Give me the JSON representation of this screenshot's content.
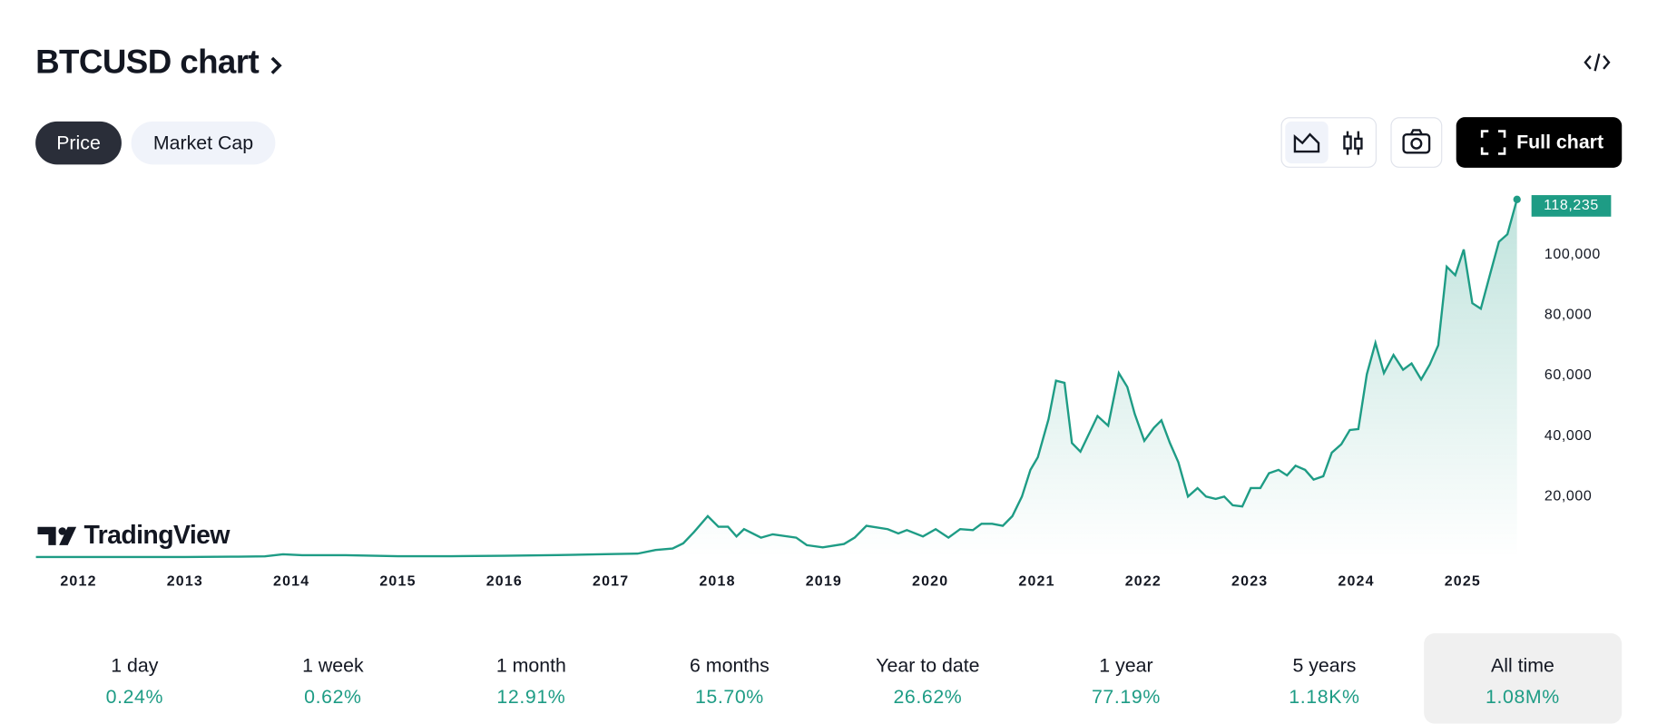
{
  "header": {
    "title": "BTCUSD chart",
    "tabs": [
      "Price",
      "Market Cap"
    ],
    "full_chart": "Full chart"
  },
  "chart_data": {
    "type": "line",
    "color": "#1e9c85",
    "watermark": "TradingView",
    "x": [
      2011.6,
      2012.0,
      2012.5,
      2013.0,
      2013.5,
      2013.75,
      2013.92,
      2014.1,
      2014.5,
      2015.0,
      2015.5,
      2016.0,
      2016.5,
      2017.0,
      2017.25,
      2017.42,
      2017.58,
      2017.68,
      2017.78,
      2017.91,
      2018.01,
      2018.1,
      2018.18,
      2018.25,
      2018.41,
      2018.52,
      2018.74,
      2018.84,
      2018.99,
      2019.19,
      2019.29,
      2019.4,
      2019.6,
      2019.7,
      2019.78,
      2019.93,
      2020.05,
      2020.17,
      2020.28,
      2020.4,
      2020.48,
      2020.58,
      2020.68,
      2020.77,
      2020.86,
      2020.94,
      2021.01,
      2021.11,
      2021.18,
      2021.26,
      2021.33,
      2021.41,
      2021.57,
      2021.67,
      2021.77,
      2021.85,
      2021.92,
      2022.01,
      2022.1,
      2022.17,
      2022.25,
      2022.33,
      2022.42,
      2022.51,
      2022.59,
      2022.68,
      2022.76,
      2022.84,
      2022.93,
      2023.01,
      2023.1,
      2023.18,
      2023.27,
      2023.35,
      2023.43,
      2023.52,
      2023.6,
      2023.69,
      2023.77,
      2023.86,
      2023.94,
      2024.02,
      2024.1,
      2024.18,
      2024.26,
      2024.35,
      2024.44,
      2024.52,
      2024.61,
      2024.69,
      2024.77,
      2024.85,
      2024.93,
      2025.01,
      2025.09,
      2025.17,
      2025.26,
      2025.34,
      2025.42,
      2025.51
    ],
    "values": [
      5,
      5,
      7,
      13,
      100,
      200,
      900,
      600,
      600,
      250,
      250,
      400,
      650,
      950,
      1100,
      2300,
      2800,
      4500,
      8200,
      13500,
      10000,
      10000,
      6800,
      9200,
      6400,
      7500,
      6400,
      3900,
      3200,
      4300,
      6400,
      10300,
      9200,
      7800,
      8900,
      6800,
      9200,
      6400,
      9200,
      8900,
      11000,
      11000,
      10300,
      13500,
      20000,
      28800,
      33000,
      45500,
      58300,
      57600,
      37700,
      34800,
      46600,
      43400,
      60800,
      56200,
      47300,
      38400,
      42700,
      45200,
      37700,
      31300,
      20000,
      22800,
      20000,
      19200,
      20000,
      17100,
      16700,
      22800,
      22800,
      27700,
      28800,
      27000,
      30200,
      28800,
      25600,
      26700,
      34500,
      37300,
      42000,
      42300,
      60400,
      70800,
      60800,
      66800,
      61900,
      64000,
      58700,
      63600,
      70000,
      96000,
      93200,
      101700,
      83900,
      82100,
      93900,
      104200,
      106700,
      118235
    ],
    "value_labels": [
      null,
      null,
      null,
      null,
      null,
      null,
      null,
      null,
      null,
      null,
      null,
      null,
      null,
      null,
      null,
      null,
      null,
      null,
      null,
      null,
      null,
      null,
      null,
      null,
      null,
      null,
      null,
      null,
      null,
      null,
      null,
      null,
      null,
      null,
      null,
      null,
      null,
      null,
      null,
      null,
      null,
      null,
      null,
      null,
      null,
      null,
      null,
      null,
      null,
      null,
      null,
      null,
      null,
      null,
      null,
      null,
      null,
      null,
      null,
      null,
      null,
      null,
      null,
      null,
      null,
      null,
      null,
      null,
      null,
      null,
      null,
      null,
      null,
      null,
      null,
      null,
      null,
      null,
      null,
      null,
      null,
      null,
      null,
      null,
      null,
      null,
      null,
      null,
      null,
      null,
      null,
      null,
      null,
      null,
      null,
      null,
      null,
      null,
      null,
      "118,235"
    ],
    "xlim": [
      2011.6,
      2025.55
    ],
    "xticks": [
      2012,
      2013,
      2014,
      2015,
      2016,
      2017,
      2018,
      2019,
      2020,
      2021,
      2022,
      2023,
      2024,
      2025
    ],
    "ylim": [
      0,
      120000
    ],
    "yticks": [
      {
        "value": 20000,
        "label": "20,000"
      },
      {
        "value": 40000,
        "label": "40,000"
      },
      {
        "value": 60000,
        "label": "60,000"
      },
      {
        "value": 80000,
        "label": "80,000"
      },
      {
        "value": 100000,
        "label": "100,000"
      }
    ]
  },
  "stats": [
    {
      "label": "1 day",
      "value": "0.24%"
    },
    {
      "label": "1 week",
      "value": "0.62%"
    },
    {
      "label": "1 month",
      "value": "12.91%"
    },
    {
      "label": "6 months",
      "value": "15.70%"
    },
    {
      "label": "Year to date",
      "value": "26.62%"
    },
    {
      "label": "1 year",
      "value": "77.19%"
    },
    {
      "label": "5 years",
      "value": "1.18K%"
    },
    {
      "label": "All time",
      "value": "1.08M%"
    }
  ]
}
